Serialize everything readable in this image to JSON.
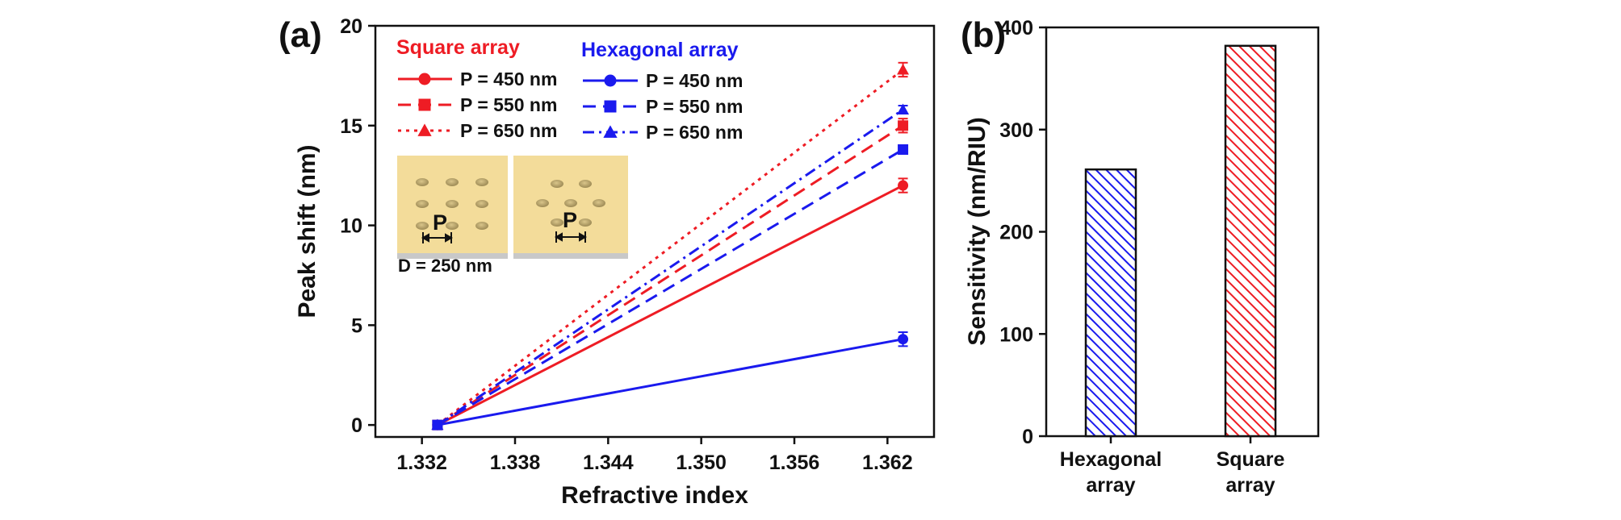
{
  "colors": {
    "square": "#ee1c24",
    "hexagonal": "#1a1aee",
    "axis": "#111111",
    "gold": "#f3dc9a"
  },
  "panel_a": {
    "label": "(a)",
    "inset": {
      "p_label": "P",
      "diameter_label": "D = 250 nm"
    },
    "legend": {
      "square_title": "Square array",
      "hexagonal_title": "Hexagonal array",
      "square_items": [
        "P = 450 nm",
        "P = 550 nm",
        "P = 650 nm"
      ],
      "hexagonal_items": [
        "P = 450 nm",
        "P = 550 nm",
        "P = 650 nm"
      ]
    }
  },
  "panel_b": {
    "label": "(b)"
  },
  "chart_data": [
    {
      "type": "line",
      "title": "",
      "xlabel": "Refractive index",
      "ylabel": "Peak shift (nm)",
      "xlim": [
        1.329,
        1.365
      ],
      "ylim": [
        -0.6,
        20
      ],
      "xticks": [
        1.332,
        1.338,
        1.344,
        1.35,
        1.356,
        1.362
      ],
      "xtick_labels": [
        "1.332",
        "1.338",
        "1.344",
        "1.350",
        "1.356",
        "1.362"
      ],
      "yticks": [
        0,
        5,
        10,
        15,
        20
      ],
      "ytick_labels": [
        "0",
        "5",
        "10",
        "15",
        "20"
      ],
      "series": [
        {
          "name": "Square array, P = 450 nm",
          "group": "square",
          "marker": "circle",
          "dash": "solid",
          "x": [
            1.333,
            1.363
          ],
          "y": [
            0,
            12.0
          ],
          "err": [
            0.2,
            0.35
          ]
        },
        {
          "name": "Square array, P = 550 nm",
          "group": "square",
          "marker": "square",
          "dash": "dash",
          "x": [
            1.333,
            1.363
          ],
          "y": [
            0,
            15.0
          ],
          "err": [
            0.2,
            0.35
          ]
        },
        {
          "name": "Square array, P = 650 nm",
          "group": "square",
          "marker": "triangle",
          "dash": "dot",
          "x": [
            1.333,
            1.363
          ],
          "y": [
            0,
            17.8
          ],
          "err": [
            0.2,
            0.35
          ]
        },
        {
          "name": "Hexagonal array, P = 450 nm",
          "group": "hexagonal",
          "marker": "circle",
          "dash": "solid",
          "x": [
            1.333,
            1.363
          ],
          "y": [
            0,
            4.3
          ],
          "err": [
            0.2,
            0.35
          ]
        },
        {
          "name": "Hexagonal array, P = 550 nm",
          "group": "hexagonal",
          "marker": "square",
          "dash": "dash",
          "x": [
            1.333,
            1.363
          ],
          "y": [
            0,
            13.8
          ],
          "err": [
            0.2,
            0.2
          ]
        },
        {
          "name": "Hexagonal array, P = 650 nm",
          "group": "hexagonal",
          "marker": "triangle",
          "dash": "dashdot",
          "x": [
            1.333,
            1.363
          ],
          "y": [
            0,
            15.8
          ],
          "err": [
            0.2,
            0.2
          ]
        }
      ]
    },
    {
      "type": "bar",
      "title": "",
      "xlabel": "",
      "ylabel": "Sensitivity (nm/RIU)",
      "categories": [
        [
          "Hexagonal",
          "array"
        ],
        [
          "Square",
          "array"
        ]
      ],
      "values": [
        261,
        382
      ],
      "ylim": [
        0,
        400
      ],
      "yticks": [
        0,
        100,
        200,
        300,
        400
      ],
      "ytick_labels": [
        "0",
        "100",
        "200",
        "300",
        "400"
      ]
    }
  ]
}
